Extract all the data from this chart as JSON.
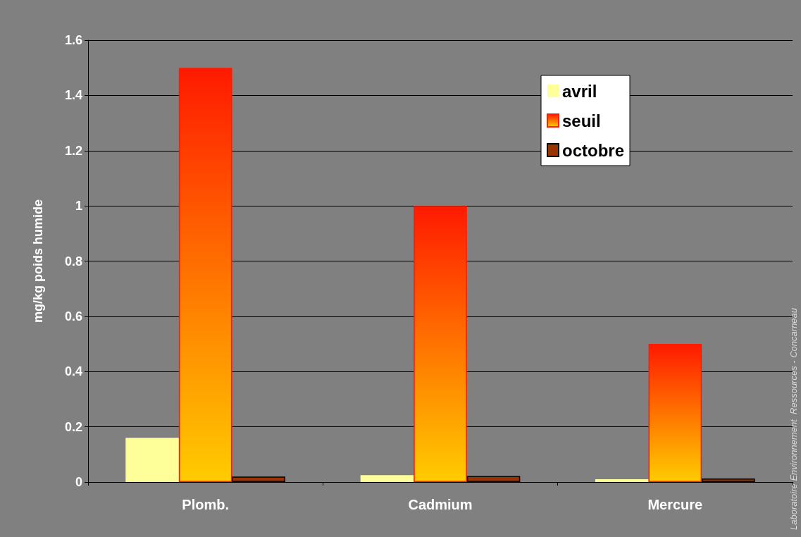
{
  "chart_data": {
    "type": "bar",
    "ylabel": "mg/kg poids humide",
    "categories": [
      "Plomb.",
      "Cadmium",
      "Mercure"
    ],
    "series": [
      {
        "name": "avril",
        "color": "#ffff99",
        "values": [
          0.16,
          0.025,
          0.01
        ]
      },
      {
        "name": "seuil",
        "color": "#ff1a00",
        "values": [
          1.5,
          1.0,
          0.5
        ]
      },
      {
        "name": "octobre",
        "color": "#993300",
        "values": [
          0.02,
          0.022,
          0.013
        ]
      }
    ],
    "ylim": [
      0,
      1.6
    ],
    "yticks": [
      0,
      0.2,
      0.4,
      0.6,
      0.8,
      1,
      1.2,
      1.4,
      1.6
    ],
    "grid": "y",
    "legend": "top right",
    "annotations": [
      "Laboratoire Environnement  Ressources - Concarneau"
    ]
  }
}
